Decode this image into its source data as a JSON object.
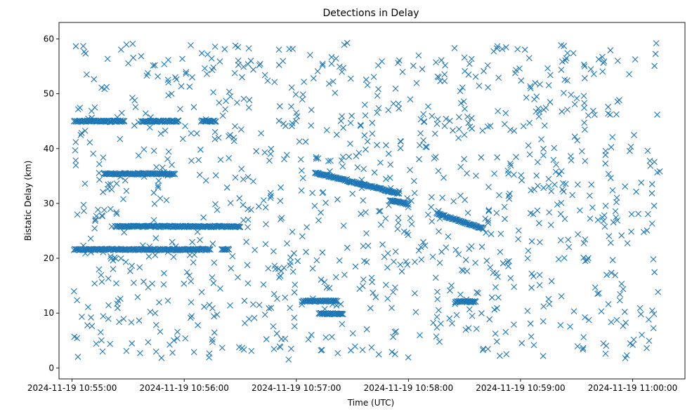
{
  "chart_data": {
    "type": "scatter",
    "title": "Detections in Delay",
    "xlabel": "Time (UTC)",
    "ylabel": "Bistatic Delay (km)",
    "marker": "x",
    "color": "#1f77b4",
    "x_unit": "UTC time",
    "xlim": [
      "2024-11-19 10:54:53",
      "2024-11-19 11:00:28"
    ],
    "ylim": [
      -2,
      63
    ],
    "x_ticks": [
      "2024-11-19 10:55:00",
      "2024-11-19 10:56:00",
      "2024-11-19 10:57:00",
      "2024-11-19 10:58:00",
      "2024-11-19 10:59:00",
      "2024-11-19 11:00:00"
    ],
    "y_ticks": [
      0,
      10,
      20,
      30,
      40,
      50,
      60
    ],
    "grid": false,
    "legend": "none",
    "structured_tracks": [
      {
        "x_start": "2024-11-19 10:55:01",
        "x_end": "2024-11-19 10:55:54",
        "y": 21.6
      },
      {
        "x_start": "2024-11-19 10:55:54",
        "x_end": "2024-11-19 10:56:14",
        "y": 21.6
      },
      {
        "x_start": "2024-11-19 10:56:20",
        "x_end": "2024-11-19 10:56:24",
        "y": 21.6
      },
      {
        "x_start": "2024-11-19 10:55:01",
        "x_end": "2024-11-19 10:55:28",
        "y": 45.0
      },
      {
        "x_start": "2024-11-19 10:55:37",
        "x_end": "2024-11-19 10:55:57",
        "y": 45.0
      },
      {
        "x_start": "2024-11-19 10:56:09",
        "x_end": "2024-11-19 10:56:17",
        "y": 45.0
      },
      {
        "x_start": "2024-11-19 10:55:17",
        "x_end": "2024-11-19 10:55:55",
        "y": 35.4
      },
      {
        "x_start": "2024-11-19 10:55:23",
        "x_end": "2024-11-19 10:56:30",
        "y": 25.8
      },
      {
        "x_start": "2024-11-19 10:57:03",
        "x_end": "2024-11-19 10:57:22",
        "y": 12.2
      },
      {
        "x_start": "2024-11-19 10:57:12",
        "x_end": "2024-11-19 10:57:25",
        "y": 9.9
      },
      {
        "x_start": "2024-11-19 10:58:25",
        "x_end": "2024-11-19 10:58:36",
        "y": 12.1
      },
      {
        "x_start": "2024-11-19 10:57:10",
        "x_end": "2024-11-19 10:57:55",
        "y_start": 35.6,
        "y_end": 31.8
      },
      {
        "x_start": "2024-11-19 10:57:50",
        "x_end": "2024-11-19 10:58:00",
        "y_start": 30.6,
        "y_end": 29.9
      },
      {
        "x_start": "2024-11-19 10:58:15",
        "x_end": "2024-11-19 10:58:40",
        "y_start": 28.2,
        "y_end": 25.4
      }
    ]
  }
}
